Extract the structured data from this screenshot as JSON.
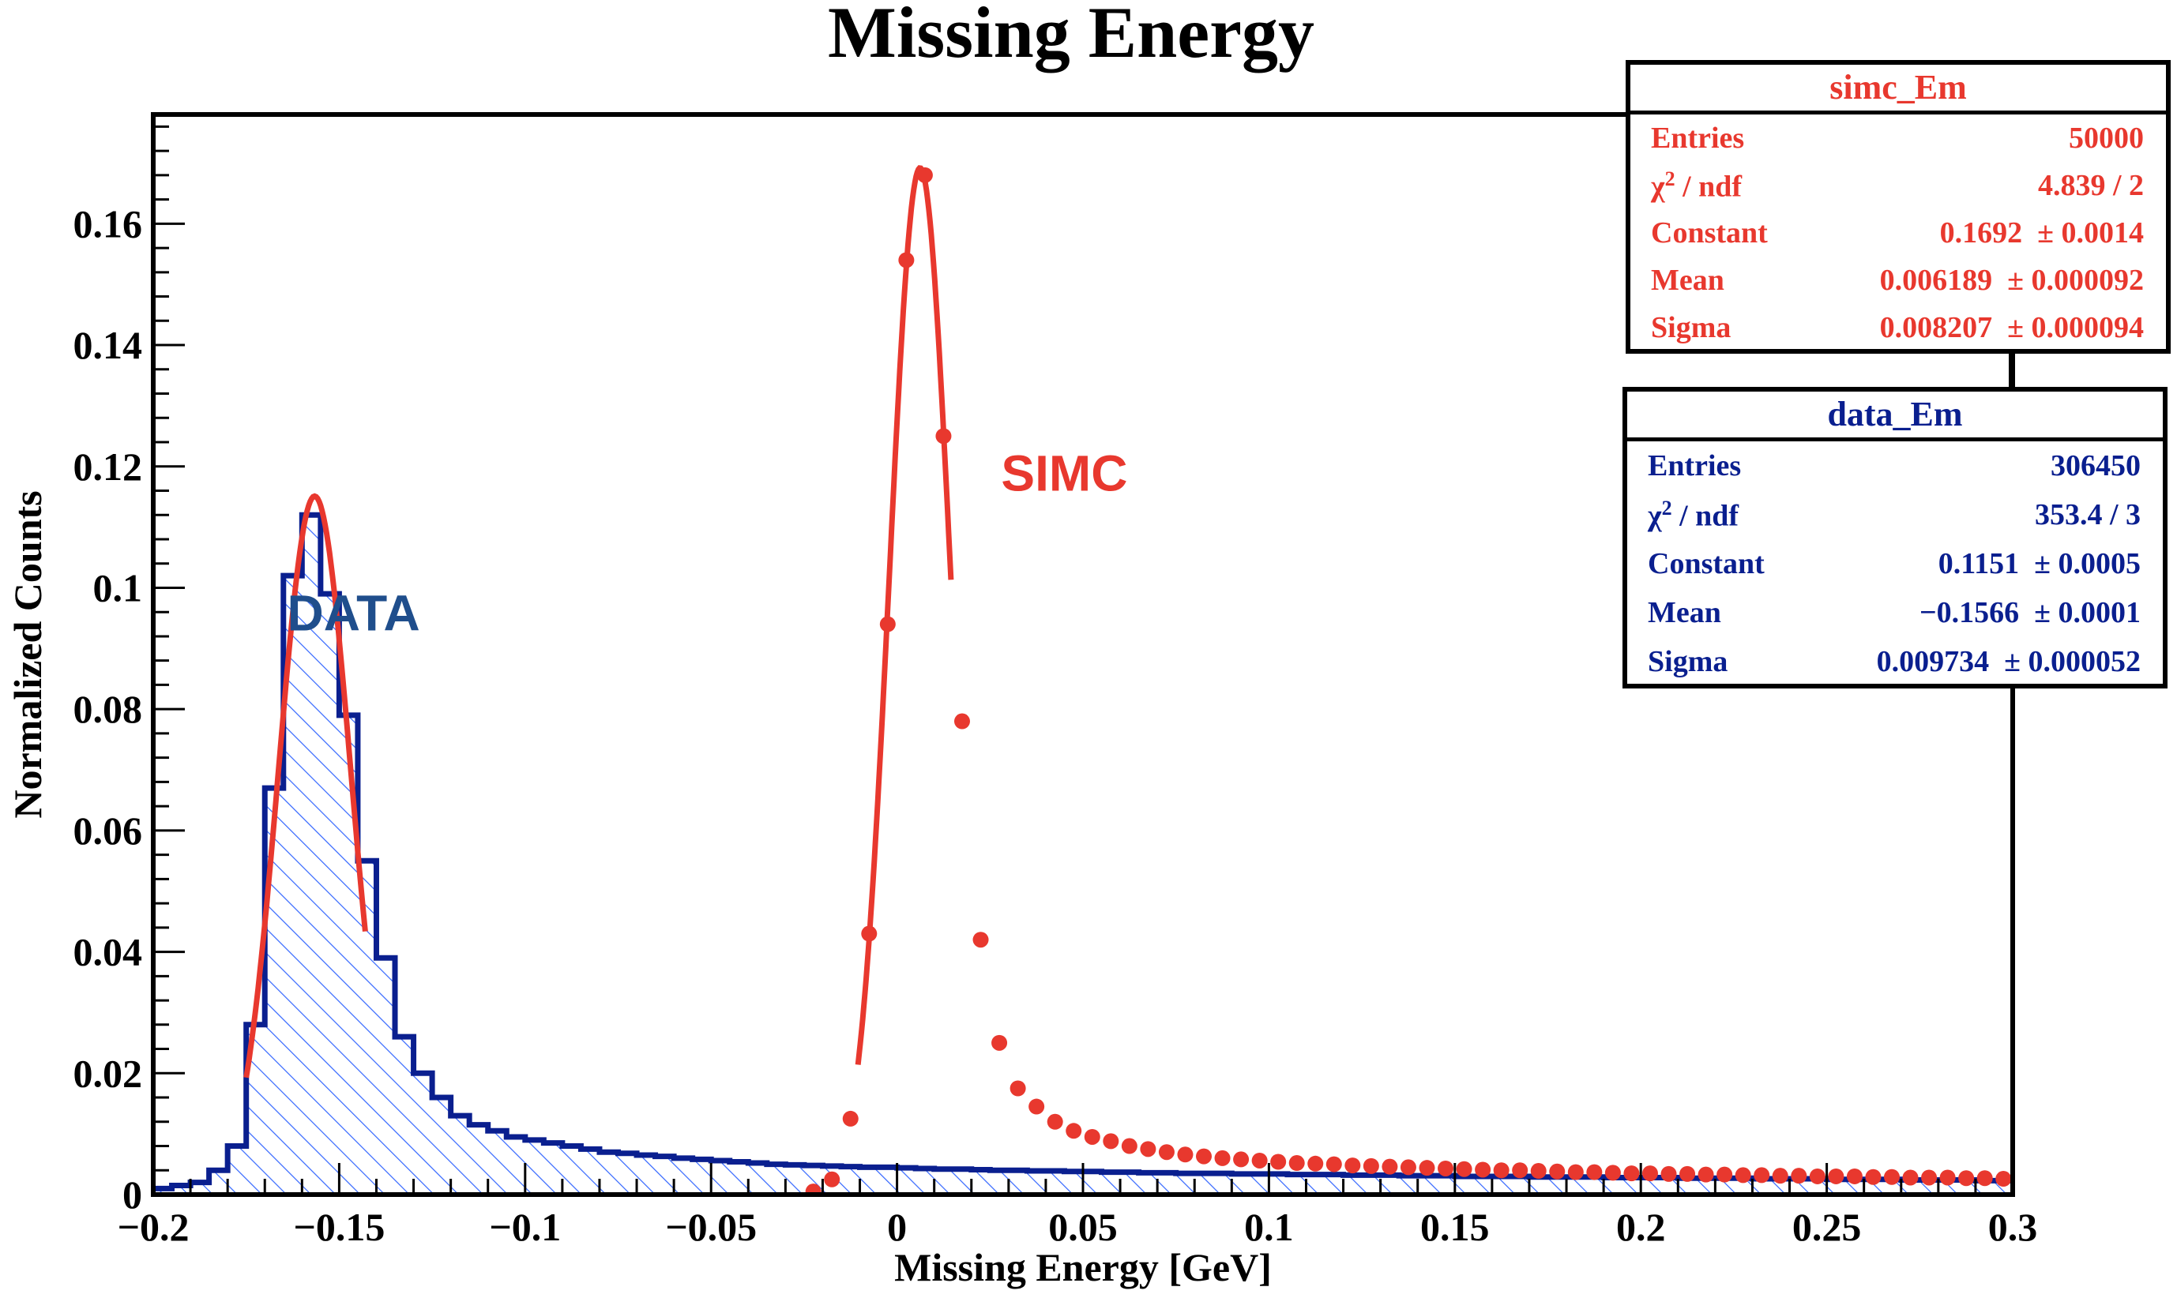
{
  "chart_data": {
    "type": "histogram",
    "title": "Missing Energy",
    "xlabel": "Missing Energy [GeV]",
    "ylabel": "Normalized Counts",
    "xlim": [
      -0.2,
      0.3
    ],
    "ylim": [
      0,
      0.178
    ],
    "x_ticks": [
      -0.2,
      -0.15,
      -0.1,
      -0.05,
      0,
      0.05,
      0.1,
      0.15,
      0.2,
      0.25,
      0.3
    ],
    "x_tick_labels": [
      "−0.2",
      "−0.15",
      "−0.1",
      "−0.05",
      "0",
      "0.05",
      "0.1",
      "0.15",
      "0.2",
      "0.25",
      "0.3"
    ],
    "y_ticks": [
      0,
      0.02,
      0.04,
      0.06,
      0.08,
      0.1,
      0.12,
      0.14,
      0.16
    ],
    "y_tick_labels": [
      "0",
      "0.02",
      "0.04",
      "0.06",
      "0.08",
      "0.1",
      "0.12",
      "0.14",
      "0.16"
    ],
    "annotations": [
      {
        "text": "DATA",
        "x": -0.164,
        "y": 0.093,
        "color": "#1f4e8c"
      },
      {
        "text": "SIMC",
        "x": 0.028,
        "y": 0.116,
        "color": "#e8382e"
      }
    ],
    "series": [
      {
        "name": "data_Em",
        "kind": "step-hist-hatched",
        "color": "#0a1f8f",
        "hatch_color": "#3366ff",
        "bin_width": 0.005,
        "bin_edges_start": -0.2,
        "values": [
          0.001,
          0.0015,
          0.002,
          0.004,
          0.008,
          0.028,
          0.067,
          0.102,
          0.112,
          0.099,
          0.079,
          0.055,
          0.039,
          0.026,
          0.02,
          0.016,
          0.013,
          0.0115,
          0.0105,
          0.0095,
          0.009,
          0.0085,
          0.008,
          0.0075,
          0.007,
          0.0068,
          0.0065,
          0.0063,
          0.006,
          0.0058,
          0.0056,
          0.0054,
          0.0052,
          0.005,
          0.0049,
          0.0048,
          0.0047,
          0.0046,
          0.0045,
          0.0045,
          0.0044,
          0.0043,
          0.0042,
          0.0042,
          0.0041,
          0.004,
          0.004,
          0.0039,
          0.0039,
          0.0038,
          0.0038,
          0.0037,
          0.0037,
          0.0036,
          0.0036,
          0.0035,
          0.0035,
          0.0035,
          0.0034,
          0.0034,
          0.0034,
          0.0033,
          0.0033,
          0.0033,
          0.0032,
          0.0032,
          0.0032,
          0.0031,
          0.0031,
          0.0031,
          0.003,
          0.003,
          0.003,
          0.003,
          0.0029,
          0.0029,
          0.0029,
          0.0029,
          0.0028,
          0.0028,
          0.0028,
          0.0028,
          0.0027,
          0.0027,
          0.0027,
          0.0027,
          0.0026,
          0.0026,
          0.0026,
          0.0026,
          0.0025,
          0.0025,
          0.0025,
          0.0025,
          0.0024,
          0.0024,
          0.0024,
          0.0024,
          0.0023,
          0.0023
        ]
      },
      {
        "name": "simc_Em",
        "kind": "markers",
        "color": "#e8382e",
        "x": [
          -0.0225,
          -0.0175,
          -0.0125,
          -0.0075,
          -0.0025,
          0.0025,
          0.0075,
          0.0125,
          0.0175,
          0.0225,
          0.0275,
          0.0325,
          0.0375,
          0.0425,
          0.0475,
          0.0525,
          0.0575,
          0.0625,
          0.0675,
          0.0725,
          0.0775,
          0.0825,
          0.0875,
          0.0925,
          0.0975,
          0.1025,
          0.1075,
          0.1125,
          0.1175,
          0.1225,
          0.1275,
          0.1325,
          0.1375,
          0.1425,
          0.1475,
          0.1525,
          0.1575,
          0.1625,
          0.1675,
          0.1725,
          0.1775,
          0.1825,
          0.1875,
          0.1925,
          0.1975,
          0.2025,
          0.2075,
          0.2125,
          0.2175,
          0.2225,
          0.2275,
          0.2325,
          0.2375,
          0.2425,
          0.2475,
          0.2525,
          0.2575,
          0.2625,
          0.2675,
          0.2725,
          0.2775,
          0.2825,
          0.2875,
          0.2925,
          0.2975
        ],
        "values": [
          0.0005,
          0.0025,
          0.0125,
          0.043,
          0.094,
          0.154,
          0.168,
          0.125,
          0.078,
          0.042,
          0.025,
          0.0175,
          0.0145,
          0.012,
          0.0105,
          0.0095,
          0.0088,
          0.008,
          0.0075,
          0.007,
          0.0066,
          0.0063,
          0.006,
          0.0058,
          0.0056,
          0.0054,
          0.0052,
          0.0051,
          0.005,
          0.0048,
          0.0047,
          0.0046,
          0.0045,
          0.0044,
          0.0043,
          0.0042,
          0.0041,
          0.004,
          0.004,
          0.0039,
          0.0038,
          0.0037,
          0.0037,
          0.0036,
          0.0035,
          0.0035,
          0.0034,
          0.0034,
          0.0033,
          0.0033,
          0.0032,
          0.0032,
          0.0031,
          0.0031,
          0.003,
          0.003,
          0.003,
          0.0029,
          0.0029,
          0.0028,
          0.0028,
          0.0028,
          0.0027,
          0.0027,
          0.0026
        ]
      }
    ],
    "fits": [
      {
        "name": "data_fit",
        "color": "#e8382e",
        "constant": 0.1151,
        "mean": -0.1566,
        "sigma": 0.009734,
        "range": [
          -0.175,
          -0.143
        ]
      },
      {
        "name": "simc_fit",
        "color": "#e8382e",
        "constant": 0.1692,
        "mean": 0.006189,
        "sigma": 0.008207,
        "range": [
          -0.0105,
          0.0145
        ]
      }
    ]
  },
  "stats": {
    "simc": {
      "title": "simc_Em",
      "rows": [
        {
          "label": "Entries",
          "value": "50000"
        },
        {
          "label": "/ ndf",
          "value": "4.839 / 2"
        },
        {
          "label": "Constant",
          "value": "0.1692  ± 0.0014"
        },
        {
          "label": "Mean",
          "value": "0.006189  ± 0.000092"
        },
        {
          "label": "Sigma",
          "value": "0.008207  ± 0.000094"
        }
      ]
    },
    "data": {
      "title": "data_Em",
      "rows": [
        {
          "label": "Entries",
          "value": "306450"
        },
        {
          "label": "/ ndf",
          "value": "353.4 / 3"
        },
        {
          "label": "Constant",
          "value": "0.1151  ± 0.0005"
        },
        {
          "label": "Mean",
          "value": "−0.1566  ± 0.0001"
        },
        {
          "label": "Sigma",
          "value": "0.009734  ± 0.000052"
        }
      ]
    }
  }
}
